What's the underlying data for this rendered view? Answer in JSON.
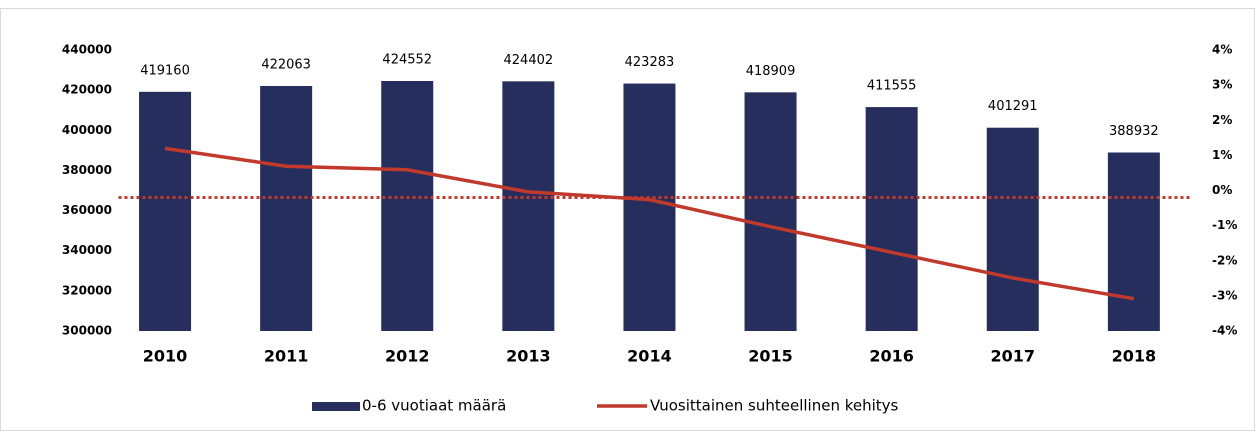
{
  "chart_data": {
    "type": "bar_line",
    "categories": [
      "2010",
      "2011",
      "2012",
      "2013",
      "2014",
      "2015",
      "2016",
      "2017",
      "2018"
    ],
    "series": [
      {
        "name": "0-6 vuotiaat määrä",
        "type": "bar",
        "color": "#262e5e",
        "values": [
          419160,
          422063,
          424552,
          424402,
          423283,
          418909,
          411555,
          401291,
          388932
        ]
      },
      {
        "name": "Vuosittainen suhteellinen kehitys",
        "type": "line",
        "axis": "y2",
        "color": "#c0392b",
        "values": [
          1.2,
          0.69,
          0.59,
          -0.04,
          -0.26,
          -1.03,
          -1.76,
          -2.49,
          -3.08
        ]
      }
    ],
    "reference_lines": [
      {
        "axis": "y2",
        "value": -0.2,
        "color": "#c0392b",
        "dashed": true
      }
    ],
    "ylim": [
      300000,
      440000
    ],
    "yticks": [
      300000,
      320000,
      340000,
      360000,
      380000,
      400000,
      420000,
      440000
    ],
    "y2lim": [
      -4,
      4
    ],
    "y2ticks": [
      {
        "value": -4,
        "label": "-4%"
      },
      {
        "value": -3,
        "label": "-3%"
      },
      {
        "value": -2,
        "label": "-2%"
      },
      {
        "value": -1,
        "label": "-1%"
      },
      {
        "value": 0,
        "label": "0%"
      },
      {
        "value": 1,
        "label": "1%"
      },
      {
        "value": 2,
        "label": "2%"
      },
      {
        "value": 3,
        "label": "3%"
      },
      {
        "value": 4,
        "label": "4%"
      }
    ],
    "grid": false,
    "legend": "bottom"
  }
}
